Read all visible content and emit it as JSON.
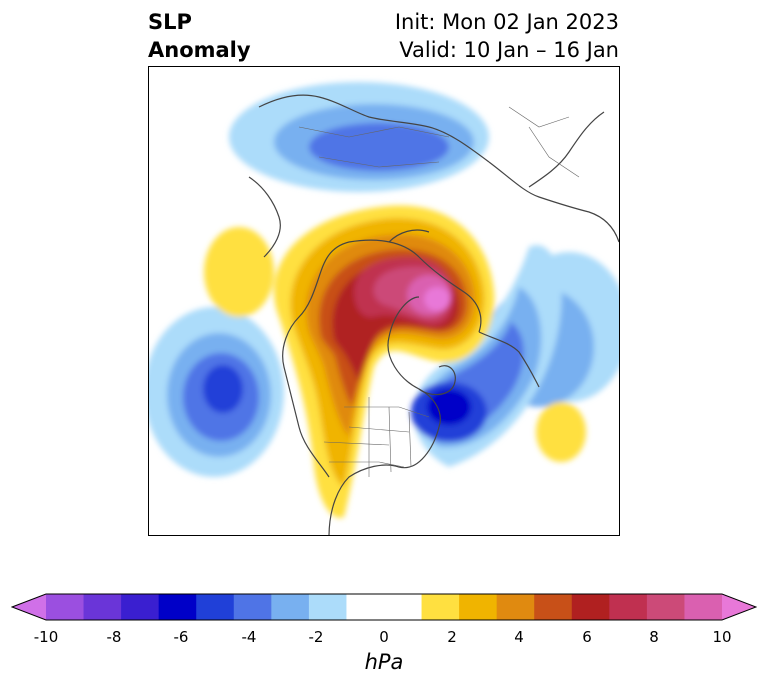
{
  "title": {
    "left_line1": "SLP",
    "left_line2": "Anomaly",
    "init": "Init: Mon 02 Jan 2023",
    "valid": "Valid: 10 Jan – 16 Jan"
  },
  "colorbar": {
    "unit": "hPa",
    "ticks": [
      "-10",
      "-8",
      "-6",
      "-4",
      "-2",
      "0",
      "2",
      "4",
      "6",
      "8",
      "10"
    ],
    "colors": [
      "#d070e8",
      "#9b4fe0",
      "#6a35d8",
      "#3a1fd0",
      "#0000c8",
      "#2040d8",
      "#4f74e6",
      "#78b0f0",
      "#acdcfa",
      "#ffffff",
      "#ffffff",
      "#ffe040",
      "#f0b400",
      "#e08a10",
      "#c85018",
      "#b02020",
      "#c03050",
      "#cc4a78",
      "#da60b0",
      "#e878d8"
    ]
  },
  "map": {
    "projection": "polar stereographic (north)",
    "anomaly_fields": [
      {
        "name": "positive-anomaly-arctic-greenland",
        "peak_hpa": 10
      },
      {
        "name": "positive-anomaly-western-north-america",
        "peak_hpa": 8
      },
      {
        "name": "negative-anomaly-north-atlantic",
        "peak_hpa": -7
      },
      {
        "name": "negative-anomaly-north-pacific",
        "peak_hpa": -6
      },
      {
        "name": "negative-anomaly-eurasia",
        "peak_hpa": -4
      }
    ]
  }
}
